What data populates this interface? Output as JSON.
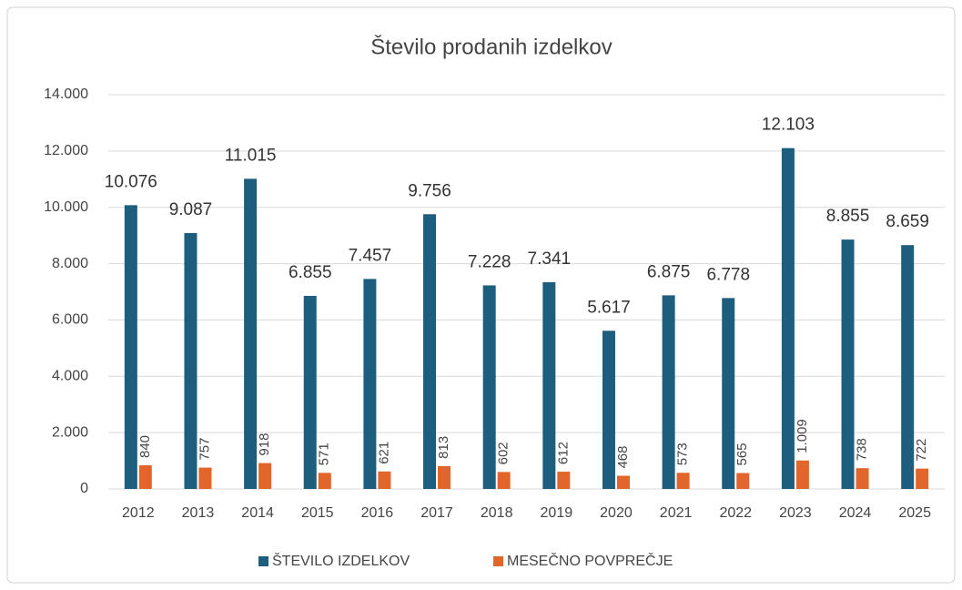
{
  "chart_data": {
    "type": "bar",
    "title": "Število prodanih izdelkov",
    "categories": [
      "2012",
      "2013",
      "2014",
      "2015",
      "2016",
      "2017",
      "2018",
      "2019",
      "2020",
      "2021",
      "2022",
      "2023",
      "2024",
      "2025"
    ],
    "series": [
      {
        "name": "ŠTEVILO IZDELKOV",
        "color": "#1d5d7e",
        "values": [
          10076,
          9087,
          11015,
          6855,
          7457,
          9756,
          7228,
          7341,
          5617,
          6875,
          6778,
          12103,
          8855,
          8659
        ],
        "value_labels": [
          "10.076",
          "9.087",
          "11.015",
          "6.855",
          "7.457",
          "9.756",
          "7.228",
          "7.341",
          "5.617",
          "6.875",
          "6.778",
          "12.103",
          "8.855",
          "8.659"
        ]
      },
      {
        "name": "MESEČNO POVPREČJE",
        "color": "#e2662b",
        "values": [
          840,
          757,
          918,
          571,
          621,
          813,
          602,
          612,
          468,
          573,
          565,
          1009,
          738,
          722
        ],
        "value_labels": [
          "840",
          "757",
          "918",
          "571",
          "621",
          "813",
          "602",
          "612",
          "468",
          "573",
          "565",
          "1.009",
          "738",
          "722"
        ]
      }
    ],
    "ylim": [
      0,
      14000
    ],
    "yticks": [
      0,
      {
        "value": 2000,
        "label": "2.000"
      },
      {
        "value": 4000,
        "label": "4.000"
      },
      {
        "value": 6000,
        "label": "6.000"
      },
      {
        "value": 8000,
        "label": "8.000"
      },
      {
        "value": 10000,
        "label": "10.000"
      },
      {
        "value": 12000,
        "label": "12.000"
      },
      {
        "value": 14000,
        "label": "14.000"
      }
    ],
    "grid": true,
    "legend": "bottom"
  }
}
